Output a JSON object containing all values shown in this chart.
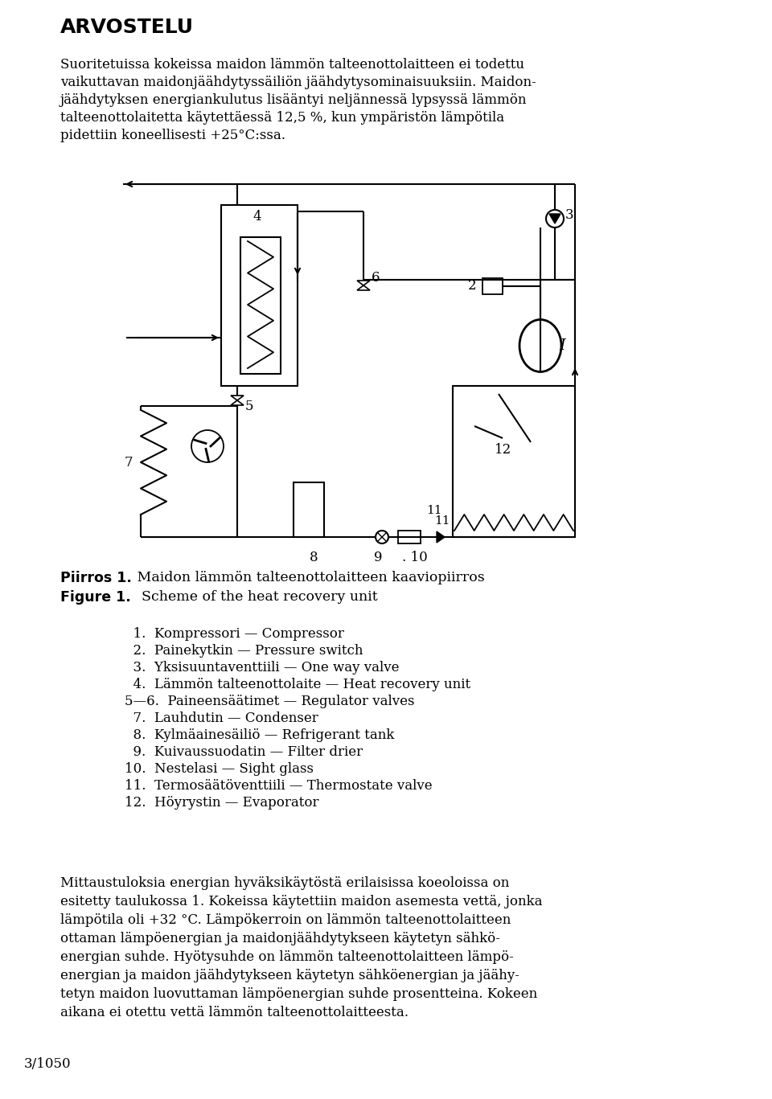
{
  "title": "ARVOSTELU",
  "para1_lines": [
    "Suoritetuissa kokeissa maidon lämmön talteenottolaitteen ei todettu",
    "vaikuttavan maidonjäähdytyssäiliön jäähdytysominaisuuksiin. Maidon-",
    "jäähdytyksen energiankulutus lisääntyi neljännessä lypsyssä lämmön",
    "talteenottolaitetta käytettäessä 12,5 %, kun ympäristön lämpötila",
    "pidettiin koneellisesti +25°C:ssa."
  ],
  "caption_bold1": "Piirros 1.",
  "caption_reg1": " Maidon lämmön talteenottolaitteen kaaviopiirros",
  "caption_bold2": "Figure 1.",
  "caption_reg2": "  Scheme of the heat recovery unit",
  "legend_lines": [
    "  1.  Kompressori — Compressor",
    "  2.  Painekytkin — Pressure switch",
    "  3.  Yksisuuntaventtiili — One way valve",
    "  4.  Lämmön talteenottolaite — Heat recovery unit",
    "5—6.  Paineensäätimet — Regulator valves",
    "  7.  Lauhdutin — Condenser",
    "  8.  Kylmäainesäiliö — Refrigerant tank",
    "  9.  Kuivaussuodatin — Filter drier",
    "10.  Nestelasi — Sight glass",
    "11.  Termosäätöventtiili — Thermostate valve",
    "12.  Höyrystin — Evaporator"
  ],
  "para2_lines": [
    "Mittaustuloksia energian hyväksikäytöstä erilaisissa koeoloissa on",
    "esitetty taulukossa 1. Kokeissa käytettiin maidon asemesta vettä, jonka",
    "lämpötila oli +32 °C. Lämpökerroin on lämmön talteenottolaitteen",
    "ottaman lämpöenergian ja maidonjäähdytykseen käytetyn sähkö-",
    "energian suhde. Hyötysuhde on lämmön talteenottolaitteen lämpö-",
    "energian ja maidon jäähdytykseen käytetyn sähköenergian ja jäähy-",
    "tetyn maidon luovuttaman lämpöenergian suhde prosentteina. Kokeen",
    "aikana ei otettu vettä lämmön talteenottolaitteesta."
  ],
  "footer": "3/1050"
}
